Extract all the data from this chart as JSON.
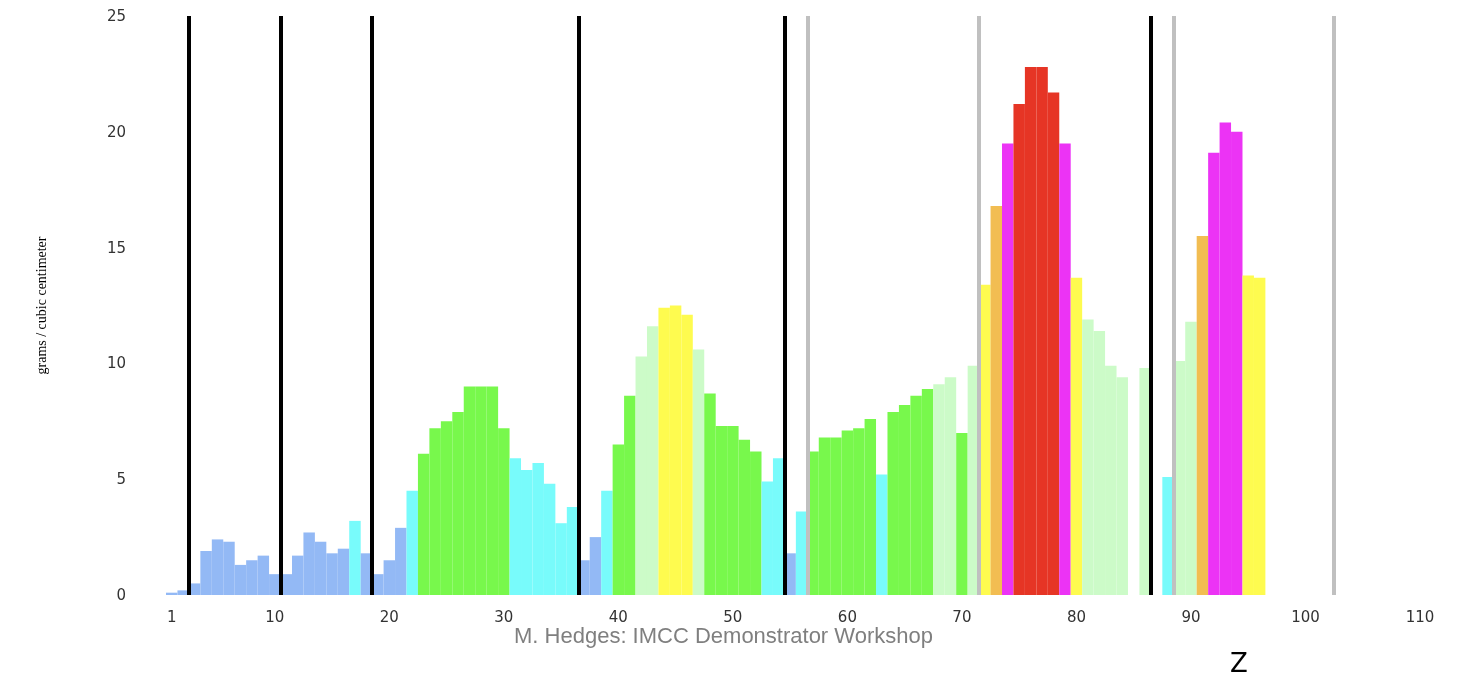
{
  "chart_data": {
    "type": "bar",
    "xlabel": "Z",
    "ylabel": "grams / cubic centimeter",
    "annotations": [
      "M. Hedges: IMCC Demonstrator Workshop"
    ],
    "x": [
      1,
      2,
      3,
      4,
      5,
      6,
      7,
      8,
      9,
      10,
      11,
      12,
      13,
      14,
      15,
      16,
      17,
      18,
      19,
      20,
      21,
      22,
      23,
      24,
      25,
      26,
      27,
      28,
      29,
      30,
      31,
      32,
      33,
      34,
      35,
      36,
      37,
      38,
      39,
      40,
      41,
      42,
      43,
      44,
      45,
      46,
      47,
      48,
      49,
      50,
      51,
      52,
      53,
      54,
      55,
      56,
      57,
      58,
      59,
      60,
      61,
      62,
      63,
      64,
      65,
      66,
      67,
      68,
      69,
      70,
      71,
      72,
      73,
      74,
      75,
      76,
      77,
      78,
      79,
      80,
      81,
      82,
      83,
      84,
      85,
      86,
      87,
      88,
      89,
      90,
      91,
      92,
      93,
      94,
      95,
      96
    ],
    "values": [
      0.1,
      0.2,
      0.5,
      1.9,
      2.4,
      2.3,
      1.3,
      1.5,
      1.7,
      0.9,
      0.9,
      1.7,
      2.7,
      2.3,
      1.8,
      2.0,
      3.2,
      1.8,
      0.9,
      1.5,
      2.9,
      4.5,
      6.1,
      7.2,
      7.5,
      7.9,
      9.0,
      9.0,
      9.0,
      7.2,
      5.9,
      5.4,
      5.7,
      4.8,
      3.1,
      3.8,
      1.5,
      2.5,
      4.5,
      6.5,
      8.6,
      10.3,
      11.6,
      12.4,
      12.5,
      12.1,
      10.6,
      8.7,
      7.3,
      7.3,
      6.7,
      6.2,
      4.9,
      5.9,
      1.8,
      3.6,
      6.2,
      6.8,
      6.8,
      7.1,
      7.2,
      7.6,
      5.2,
      7.9,
      8.2,
      8.6,
      8.9,
      9.1,
      9.4,
      7.0,
      9.9,
      13.4,
      16.8,
      19.5,
      21.2,
      22.8,
      22.8,
      21.7,
      19.5,
      13.7,
      11.9,
      11.4,
      9.9,
      9.4,
      null,
      9.8,
      null,
      5.1,
      10.1,
      11.8,
      15.5,
      19.1,
      20.4,
      20.0,
      13.8,
      13.7
    ],
    "colors": [
      "#93b9f5",
      "#93b9f5",
      "#93b9f5",
      "#93b9f5",
      "#93b9f5",
      "#93b9f5",
      "#93b9f5",
      "#93b9f5",
      "#93b9f5",
      "#93b9f5",
      "#93b9f5",
      "#93b9f5",
      "#93b9f5",
      "#93b9f5",
      "#93b9f5",
      "#93b9f5",
      "#78fbfb",
      "#93b9f5",
      "#93b9f5",
      "#93b9f5",
      "#93b9f5",
      "#78fbfb",
      "#78f84c",
      "#78f84c",
      "#78f84c",
      "#78f84c",
      "#78f84c",
      "#78f84c",
      "#78f84c",
      "#78f84c",
      "#78fbfb",
      "#78fbfb",
      "#78fbfb",
      "#78fbfb",
      "#78fbfb",
      "#78fbfb",
      "#93b9f5",
      "#93b9f5",
      "#78fbfb",
      "#78f84c",
      "#78f84c",
      "#ccfbc8",
      "#ccfbc8",
      "#fefb4f",
      "#fefb4f",
      "#fefb4f",
      "#ccfbc8",
      "#78f84c",
      "#78f84c",
      "#78f84c",
      "#78f84c",
      "#78f84c",
      "#78fbfb",
      "#78fbfb",
      "#93b9f5",
      "#78fbfb",
      "#78f84c",
      "#78f84c",
      "#78f84c",
      "#78f84c",
      "#78f84c",
      "#78f84c",
      "#78fbfb",
      "#78f84c",
      "#78f84c",
      "#78f84c",
      "#78f84c",
      "#ccfbc8",
      "#ccfbc8",
      "#78f84c",
      "#ccfbc8",
      "#fefb4f",
      "#f2bd52",
      "#ec33f5",
      "#e63525",
      "#e63525",
      "#e63525",
      "#e63525",
      "#ec33f5",
      "#fefb4f",
      "#ccfbc8",
      "#ccfbc8",
      "#ccfbc8",
      "#ccfbc8",
      "#ccfbc8",
      "#ccfbc8",
      "#78fbfb",
      "#78fbfb",
      "#ccfbc8",
      "#ccfbc8",
      "#f2bd52",
      "#ec33f5",
      "#ec33f5",
      "#ec33f5",
      "#fefb4f",
      "#fefb4f"
    ],
    "xlim": [
      0.5,
      110
    ],
    "xticks": [
      1,
      10,
      20,
      30,
      40,
      50,
      60,
      70,
      80,
      90,
      100,
      110
    ],
    "ylim": [
      0,
      25
    ],
    "yticks": [
      0,
      5,
      10,
      15,
      20,
      25
    ],
    "grid": false,
    "ref_lines": [
      {
        "axis": "x",
        "value": 2.5,
        "color": "#000000"
      },
      {
        "axis": "x",
        "value": 10.5,
        "color": "#000000"
      },
      {
        "axis": "x",
        "value": 18.5,
        "color": "#000000"
      },
      {
        "axis": "x",
        "value": 36.5,
        "color": "#000000"
      },
      {
        "axis": "x",
        "value": 54.5,
        "color": "#000000"
      },
      {
        "axis": "x",
        "value": 86.5,
        "color": "#000000"
      },
      {
        "axis": "x",
        "value": 56.5,
        "color": "#c0c0c0"
      },
      {
        "axis": "x",
        "value": 71.5,
        "color": "#c0c0c0"
      },
      {
        "axis": "x",
        "value": 88.5,
        "color": "#c0c0c0"
      },
      {
        "axis": "x",
        "value": 102.5,
        "color": "#c0c0c0"
      }
    ]
  }
}
